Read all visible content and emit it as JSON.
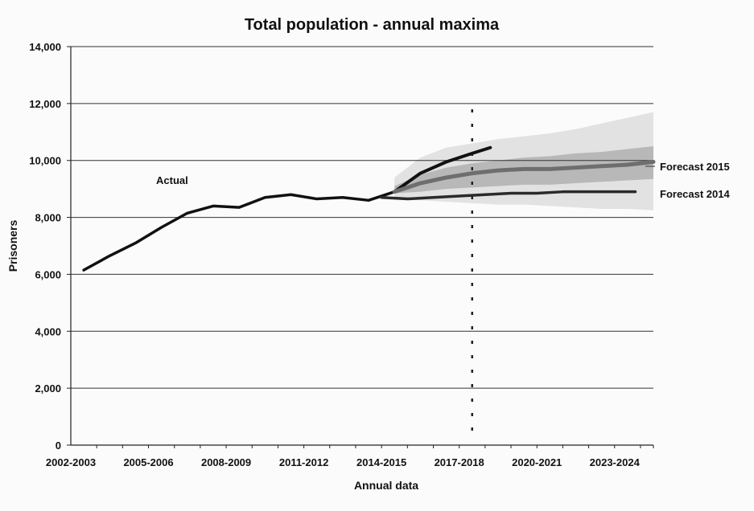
{
  "chart_data": {
    "type": "line",
    "title": "Total population - annual maxima",
    "xlabel": "Annual data",
    "ylabel": "Prisoners",
    "ylim": [
      0,
      14000
    ],
    "yticks": [
      0,
      2000,
      4000,
      6000,
      8000,
      10000,
      12000,
      14000
    ],
    "ytick_labels": [
      "0",
      "2,000",
      "4,000",
      "6,000",
      "8,000",
      "10,000",
      "12,000",
      "14,000"
    ],
    "xlim": [
      2002.5,
      2025
    ],
    "xticks": [
      2002.5,
      2005.5,
      2008.5,
      2011.5,
      2014.5,
      2017.5,
      2020.5,
      2023.5
    ],
    "xtick_labels": [
      "2002-2003",
      "2005-2006",
      "2008-2009",
      "2011-2012",
      "2014-2015",
      "2017-2018",
      "2020-2021",
      "2023-2024"
    ],
    "grid": true,
    "vline_x": 2018,
    "colors": {
      "actual": "#111111",
      "forecast_2015": "#6e6e6e",
      "forecast_2014": "#2a2a2a",
      "band_outer": "#e2e2e2",
      "band_inner": "#b8b8b8"
    },
    "series": [
      {
        "name": "Actual",
        "x": [
          2003,
          2004,
          2005,
          2006,
          2007,
          2008,
          2009,
          2010,
          2011,
          2012,
          2013,
          2014,
          2015
        ],
        "values": [
          6150,
          6650,
          7100,
          7650,
          8150,
          8400,
          8350,
          8700,
          8800,
          8650,
          8700,
          8600,
          8900
        ]
      },
      {
        "name": "",
        "x": [
          2015,
          2016,
          2017,
          2018,
          2018.7
        ],
        "values": [
          8900,
          9550,
          9950,
          10250,
          10450
        ]
      },
      {
        "name": "Forecast 2015",
        "x": [
          2015,
          2016,
          2017,
          2018,
          2019,
          2020,
          2021,
          2022,
          2023,
          2024,
          2025
        ],
        "values": [
          8900,
          9200,
          9400,
          9550,
          9650,
          9700,
          9700,
          9750,
          9800,
          9850,
          9950
        ]
      },
      {
        "name": "Forecast 2014",
        "x": [
          2014.5,
          2015.5,
          2016.5,
          2017.5,
          2018.5,
          2019.5,
          2020.5,
          2021.5,
          2022.5,
          2023.5,
          2024.3
        ],
        "values": [
          8700,
          8650,
          8700,
          8750,
          8800,
          8850,
          8850,
          8900,
          8900,
          8900,
          8900
        ]
      }
    ],
    "bands": [
      {
        "x": [
          2015,
          2016,
          2017,
          2018,
          2019,
          2020,
          2021,
          2022,
          2023,
          2024,
          2025
        ],
        "lower": [
          8700,
          8600,
          8550,
          8500,
          8450,
          8450,
          8400,
          8350,
          8300,
          8300,
          8250
        ],
        "upper": [
          9400,
          10100,
          10450,
          10600,
          10750,
          10850,
          10950,
          11100,
          11300,
          11500,
          11700
        ]
      },
      {
        "x": [
          2015,
          2016,
          2017,
          2018,
          2019,
          2020,
          2021,
          2022,
          2023,
          2024,
          2025
        ],
        "lower": [
          8850,
          8900,
          9000,
          9050,
          9100,
          9150,
          9150,
          9200,
          9250,
          9300,
          9350
        ],
        "upper": [
          9100,
          9500,
          9750,
          9900,
          10000,
          10100,
          10150,
          10250,
          10300,
          10400,
          10500
        ]
      }
    ],
    "annotations": [
      "Actual",
      "Forecast 2015",
      "Forecast 2014"
    ]
  }
}
